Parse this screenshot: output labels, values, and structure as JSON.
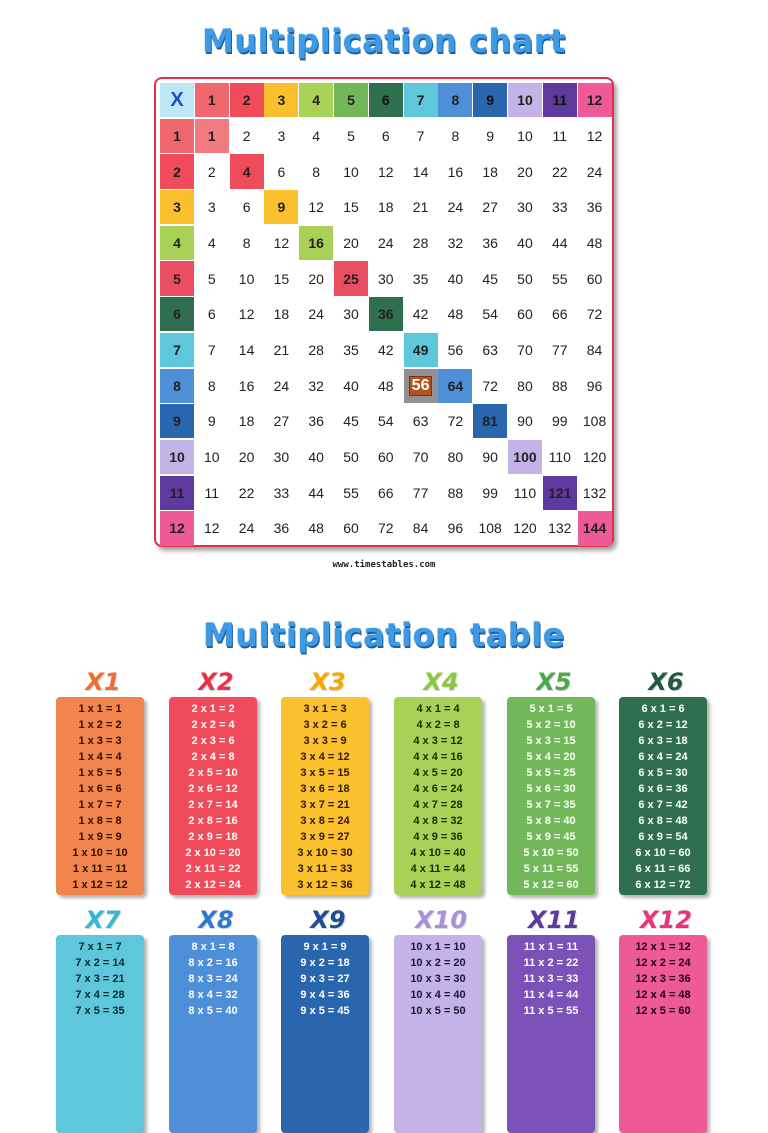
{
  "chart_title": "Multiplication chart",
  "table_title": "Multiplication table",
  "footer": "www.timestables.com",
  "corner_symbol": "X",
  "highlight": {
    "row": 8,
    "col": 7
  },
  "chart_data": {
    "type": "table",
    "size": 12,
    "row_headers": [
      1,
      2,
      3,
      4,
      5,
      6,
      7,
      8,
      9,
      10,
      11,
      12
    ],
    "col_headers": [
      1,
      2,
      3,
      4,
      5,
      6,
      7,
      8,
      9,
      10,
      11,
      12
    ]
  },
  "tables": [
    {
      "label": "X1",
      "color": "#f2844e",
      "accent": "#ef6f32",
      "text": "#2b1200",
      "lines": [
        "1 x 1 = 1",
        "1 x 2 = 2",
        "1 x 3 = 3",
        "1 x 4 = 4",
        "1 x 5 = 5",
        "1 x 6 = 6",
        "1 x 7 = 7",
        "1 x 8 = 8",
        "1 x 9 = 9",
        "1 x 10 = 10",
        "1 x 11 = 11",
        "1 x 12 = 12"
      ]
    },
    {
      "label": "X2",
      "color": "#ef4b5a",
      "accent": "#e8314a",
      "text": "#ffffff",
      "lines": [
        "2 x 1 = 2",
        "2 x 2 = 4",
        "2 x 3 = 6",
        "2 x 4 = 8",
        "2 x 5 = 10",
        "2 x 6 = 12",
        "2 x 7 = 14",
        "2 x 8 = 16",
        "2 x 9 = 18",
        "2 x 10 = 20",
        "2 x 11 = 22",
        "2 x 12 = 24"
      ]
    },
    {
      "label": "X3",
      "color": "#fbc02d",
      "accent": "#f7a800",
      "text": "#2b1a00",
      "lines": [
        "3 x 1 = 3",
        "3 x 2 = 6",
        "3 x 3 = 9",
        "3 x 4 = 12",
        "3 x 5 = 15",
        "3 x 6 = 18",
        "3 x 7 = 21",
        "3 x 8 = 24",
        "3 x 9 = 27",
        "3 x 10 = 30",
        "3 x 11 = 33",
        "3 x 12 = 36"
      ]
    },
    {
      "label": "X4",
      "color": "#a9d158",
      "accent": "#8cc63f",
      "text": "#1f2b00",
      "lines": [
        "4 x 1 = 4",
        "4 x 2 = 8",
        "4 x 3 = 12",
        "4 x 4 = 16",
        "4 x 5 = 20",
        "4 x 6 = 24",
        "4 x 7 = 28",
        "4 x 8 = 32",
        "4 x 9 = 36",
        "4 x 10 = 40",
        "4 x 11 = 44",
        "4 x 12 = 48"
      ]
    },
    {
      "label": "X5",
      "color": "#72b85a",
      "accent": "#4ea84a",
      "text": "#ffffff",
      "lines": [
        "5 x 1 = 5",
        "5 x 2 = 10",
        "5 x 3 = 15",
        "5 x 4 = 20",
        "5 x 5 = 25",
        "5 x 6 = 30",
        "5 x 7 = 35",
        "5 x 8 = 40",
        "5 x 9 = 45",
        "5 x 10 = 50",
        "5 x 11 = 55",
        "5 x 12 = 60"
      ]
    },
    {
      "label": "X6",
      "color": "#2f6e4e",
      "accent": "#1f5a3e",
      "text": "#ffffff",
      "lines": [
        "6 x 1 = 6",
        "6 x 2 = 12",
        "6 x 3 = 18",
        "6 x 4 = 24",
        "6 x 5 = 30",
        "6 x 6 = 36",
        "6 x 7 = 42",
        "6 x 8 = 48",
        "6 x 9 = 54",
        "6 x 10 = 60",
        "6 x 11 = 66",
        "6 x 12 = 72"
      ]
    },
    {
      "label": "X7",
      "color": "#5fc7db",
      "accent": "#37b6d4",
      "text": "#062a33",
      "lines": [
        "7 x 1 = 7",
        "7 x 2 = 14",
        "7 x 3 = 21",
        "7 x 4 = 28",
        "7 x 5 = 35"
      ]
    },
    {
      "label": "X8",
      "color": "#4f8fd8",
      "accent": "#2f78d0",
      "text": "#ffffff",
      "lines": [
        "8 x 1 = 8",
        "8 x 2 = 16",
        "8 x 3 = 24",
        "8 x 4 = 32",
        "8 x 5 = 40"
      ]
    },
    {
      "label": "X9",
      "color": "#2a66ad",
      "accent": "#1d4f94",
      "text": "#ffffff",
      "lines": [
        "9 x 1 = 9",
        "9 x 2 = 18",
        "9 x 3 = 27",
        "9 x 4 = 36",
        "9 x 5 = 45"
      ]
    },
    {
      "label": "X10",
      "color": "#c3b3e6",
      "accent": "#a98fdc",
      "text": "#1f1633",
      "lines": [
        "10 x 1 = 10",
        "10 x 2 = 20",
        "10 x 3 = 30",
        "10 x 4 = 40",
        "10 x 5 = 50"
      ]
    },
    {
      "label": "X11",
      "color": "#7a52b8",
      "accent": "#5e3a9e",
      "text": "#ffffff",
      "lines": [
        "11 x 1 = 11",
        "11 x 2 = 22",
        "11 x 3 = 33",
        "11 x 4 = 44",
        "11 x 5 = 55"
      ]
    },
    {
      "label": "X12",
      "color": "#ee5a98",
      "accent": "#e8337e",
      "text": "#1f0010",
      "lines": [
        "12 x 1 = 12",
        "12 x 2 = 24",
        "12 x 3 = 36",
        "12 x 4 = 48",
        "12 x 5 = 60"
      ]
    }
  ]
}
